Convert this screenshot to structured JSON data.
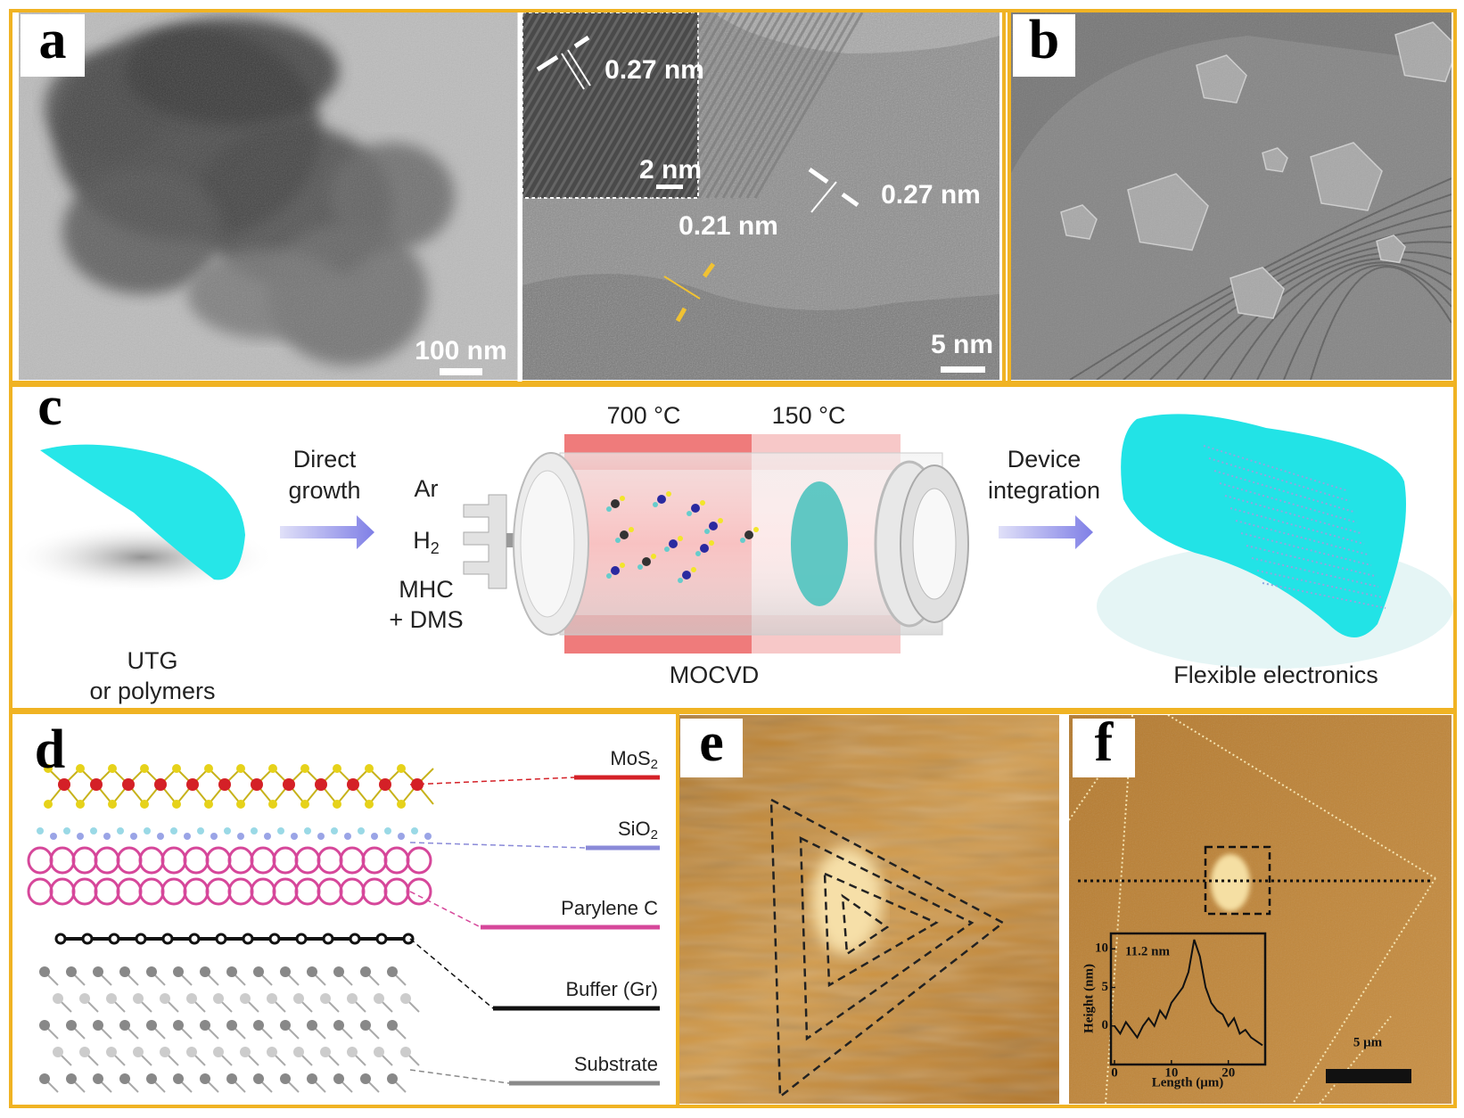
{
  "panels": {
    "a": {
      "label": "a",
      "scale_left": "100 nm",
      "inset_spacing": "0.27 nm",
      "inset_scale": "2 nm",
      "spacing_1": "0.27 nm",
      "spacing_2": "0.21 nm",
      "scale_right": "5 nm"
    },
    "b": {
      "label": "b"
    },
    "c": {
      "label": "c",
      "substrate": [
        "UTG",
        "or polymers"
      ],
      "step_1": [
        "Direct",
        "growth"
      ],
      "gases": [
        {
          "text": "Ar"
        },
        {
          "text": "H",
          "sub": "2"
        },
        {
          "text": "MHC"
        },
        {
          "text": "+ DMS"
        }
      ],
      "zone_1": "700 °C",
      "zone_2": "150 °C",
      "reactor": "MOCVD",
      "step_2": [
        "Device",
        "integration"
      ],
      "product": "Flexible electronics"
    },
    "d": {
      "label": "d",
      "layers": [
        {
          "text": "MoS",
          "sub": "2",
          "color": "#d42027"
        },
        {
          "text": "SiO",
          "sub": "2",
          "color": "#8a8ad8"
        },
        {
          "text": "Parylene C",
          "color": "#d6479a"
        },
        {
          "text": "Buffer (Gr)",
          "color": "#111111"
        },
        {
          "text": "Substrate",
          "color": "#8a8a8a"
        }
      ]
    },
    "e": {
      "label": "e"
    },
    "f": {
      "label": "f",
      "scale": "5 μm",
      "inset": {
        "type": "line",
        "annotation": "11.2 nm",
        "xlabel": "Length (μm)",
        "ylabel": "Height (nm)",
        "x": [
          0,
          1,
          2,
          3,
          4,
          5,
          6,
          7,
          8,
          9,
          10,
          11,
          12,
          13,
          14,
          15,
          16,
          17,
          18,
          19,
          20,
          21,
          22,
          23,
          24,
          25,
          26
        ],
        "values": [
          0,
          -1,
          0.5,
          -0.5,
          -1.5,
          0,
          1,
          0,
          2,
          1,
          3,
          4,
          5,
          7,
          11.2,
          9,
          5,
          3,
          2,
          1.5,
          0,
          1,
          -1,
          -0.5,
          -1.5,
          -2,
          -2.5
        ],
        "color": "#111111",
        "xlim": [
          0,
          26
        ],
        "ylim": [
          -5,
          12
        ],
        "xticks": [
          0,
          10,
          20
        ],
        "yticks": [
          0,
          5,
          10
        ]
      }
    }
  }
}
